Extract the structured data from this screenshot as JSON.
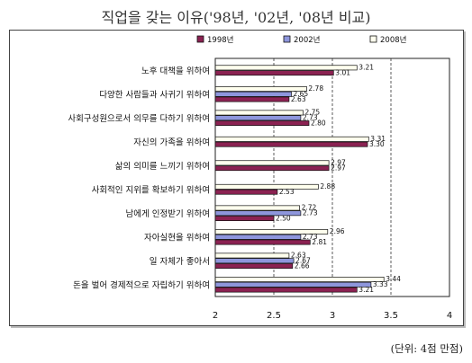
{
  "chart_data": {
    "type": "bar",
    "orientation": "horizontal",
    "title": "직업을 갖는 이유('98년, '02년, '08년 비교)",
    "note": "(단위: 4점 만점)",
    "categories": [
      "노후 대책을 위하여",
      "다양한 사람들과 사귀기 위하여",
      "사회구성원으로서 의무를 다하기 위하여",
      "자신의 가족을 위하여",
      "삶의 의미를 느끼기 위하여",
      "사회적인 지위를 확보하기 위하여",
      "남에게 인정받기 위하여",
      "자아실현을 위하여",
      "일 자체가 좋아서",
      "돈을 벌어 경제적으로 자립하기 위하여"
    ],
    "series": [
      {
        "name": "1998년",
        "color": "#8b2252",
        "values": [
          3.01,
          2.63,
          2.8,
          3.3,
          2.97,
          2.53,
          2.5,
          2.81,
          2.66,
          3.21
        ]
      },
      {
        "name": "2002년",
        "color": "#8e96dc",
        "values": [
          null,
          2.65,
          2.73,
          null,
          null,
          null,
          2.73,
          2.73,
          2.67,
          3.33
        ]
      },
      {
        "name": "2008년",
        "color": "#ffffee",
        "values": [
          3.21,
          2.78,
          2.75,
          3.31,
          2.97,
          2.88,
          2.72,
          2.96,
          2.63,
          3.44
        ]
      }
    ],
    "xlim": [
      2,
      4
    ],
    "xticks": [
      2,
      2.5,
      3,
      3.5,
      4
    ],
    "grid": "dashed vertical lines at 2.5, 3, 3.5",
    "legend": "top"
  }
}
